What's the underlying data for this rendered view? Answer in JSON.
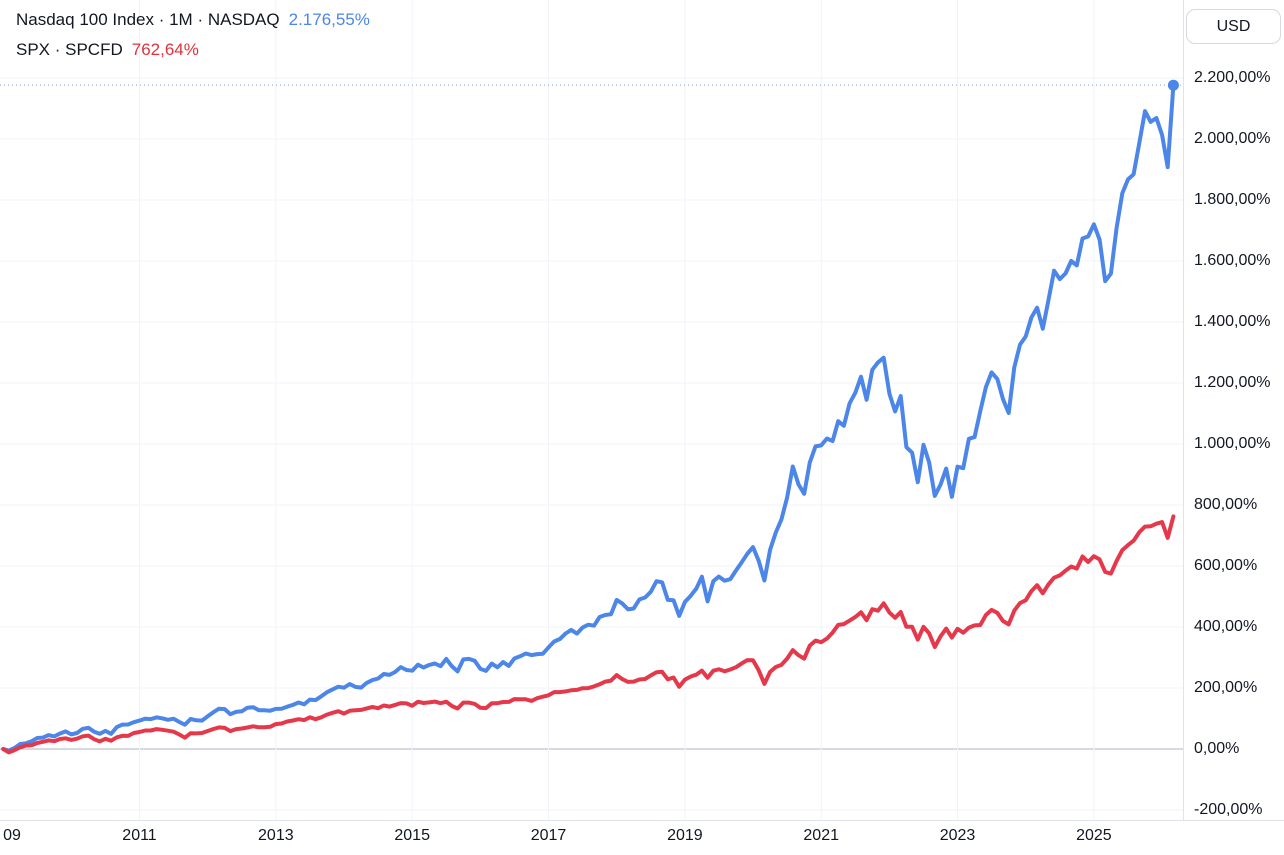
{
  "legend": {
    "line1_title": "Nasdaq 100 Index · 1M · NASDAQ",
    "line1_value": "2.176,55%",
    "line2_title": "SPX · SPCFD",
    "line2_value": "762,64%"
  },
  "currency_button_label": "USD",
  "colors": {
    "ndx_line": "#4c86e8",
    "spx_line": "#e5394b",
    "legend_value_blue": "#4c86e8",
    "legend_value_red": "#e0313e",
    "grid": "#f0f3fa",
    "zero_line": "#b0b3bc",
    "axis_text": "#131722",
    "separator": "#e0e3eb"
  },
  "chart_data": {
    "type": "line",
    "x_axis": {
      "ticks": [
        {
          "label": "09",
          "year": 2009
        },
        {
          "label": "2011",
          "year": 2011
        },
        {
          "label": "2013",
          "year": 2013
        },
        {
          "label": "2015",
          "year": 2015
        },
        {
          "label": "2017",
          "year": 2017
        },
        {
          "label": "2019",
          "year": 2019
        },
        {
          "label": "2021",
          "year": 2021
        },
        {
          "label": "2023",
          "year": 2023
        },
        {
          "label": "2025",
          "year": 2025
        }
      ],
      "xlim": [
        2008.95,
        2026.4
      ],
      "grid": true
    },
    "y_axis": {
      "unit": "percent",
      "tick_values": [
        2200,
        2000,
        1800,
        1600,
        1400,
        1200,
        1000,
        800,
        600,
        400,
        200,
        0,
        -200
      ],
      "tick_labels": [
        "2.200,00%",
        "2.000,00%",
        "1.800,00%",
        "1.600,00%",
        "1.400,00%",
        "1.200,00%",
        "1.000,00%",
        "800,00%",
        "600,00%",
        "400,00%",
        "200,00%",
        "0,00%",
        "-200,00%"
      ],
      "ylim": [
        -320,
        2260
      ],
      "grid": true
    },
    "series": [
      {
        "id": "ndx",
        "name": "Nasdaq 100 Index",
        "color": "#4c86e8",
        "interval": "1M",
        "start_year": 2009,
        "last_value": 2176.55,
        "has_end_dot": true,
        "has_dotted_price_line": true,
        "values": [
          0,
          -5.3,
          3.2,
          16.4,
          18.8,
          25.2,
          36.0,
          37.5,
          45.5,
          41.4,
          50.7,
          57.6,
          47.9,
          52.5,
          66.1,
          69.6,
          56.7,
          49.7,
          59.4,
          49.7,
          71.9,
          80.0,
          80.3,
          88.0,
          93.0,
          99.2,
          98.1,
          103.7,
          100.8,
          95.8,
          99.5,
          88.4,
          79.7,
          98.2,
          94.2,
          93.0,
          107.3,
          120.8,
          132.0,
          130.8,
          114.0,
          121.6,
          123.6,
          135.4,
          137.2,
          127.1,
          127.0,
          125.5,
          131.4,
          132.0,
          138.8,
          144.7,
          152.6,
          146.5,
          161.9,
          160.4,
          172.7,
          186.2,
          195.5,
          204.4,
          201.1,
          213.2,
          203.6,
          201.4,
          216.7,
          225.8,
          231.2,
          245.9,
          243.1,
          252.4,
          268.4,
          259.0,
          256.8,
          276.4,
          267.2,
          275.8,
          280.3,
          271.4,
          295.4,
          271.2,
          254.4,
          293.8,
          295.3,
          289.2,
          262.6,
          256.0,
          280.0,
          267.9,
          284.8,
          272.3,
          296.6,
          304.0,
          313.2,
          308.0,
          311.2,
          312.1,
          333.1,
          352.5,
          360.8,
          378.6,
          390.6,
          378.5,
          398.3,
          407.5,
          404.2,
          432.8,
          439.3,
          442.0,
          489.0,
          476.7,
          457.7,
          460.8,
          490.6,
          496.7,
          515.3,
          550.2,
          546.4,
          489.0,
          488.0,
          436.4,
          482.1,
          501.8,
          525.3,
          564.8,
          483.8,
          550.1,
          565.1,
          551.8,
          556.7,
          585.1,
          612.1,
          640.1,
          662.0,
          617.0,
          552.5,
          653.4,
          709.8,
          752.5,
          824.2,
          926.3,
          867.6,
          836.6,
          939.7,
          992.2,
          995.3,
          1018.0,
          1009.4,
          1074.6,
          1059.8,
          1133.4,
          1167.8,
          1220.5,
          1144.9,
          1243.2,
          1267.4,
          1283.1,
          1165.3,
          1106.5,
          1157.5,
          989.4,
          971.4,
          874.9,
          997.3,
          940.0,
          829.7,
          866.5,
          919.5,
          827.0,
          925.5,
          920.5,
          1017.0,
          1022.5,
          1108.0,
          1186.4,
          1234.8,
          1213.6,
          1147.0,
          1101.7,
          1251.5,
          1325.9,
          1352.3,
          1414.7,
          1447.0,
          1378.0,
          1470.8,
          1568.1,
          1540.8,
          1558.9,
          1600.1,
          1585.6,
          1673.7,
          1680.7,
          1720.2,
          1669.8,
          1533.7,
          1558.6,
          1708.5,
          1822.0,
          1867.6,
          1884.3,
          1986.9,
          2091.4,
          2056.0,
          2069.0,
          2013.0,
          1908.0,
          2176.55
        ]
      },
      {
        "id": "spx",
        "name": "SPX",
        "color": "#e5394b",
        "interval": "1M",
        "start_year": 2009,
        "last_value": 762.64,
        "has_end_dot": false,
        "has_dotted_price_line": false,
        "values": [
          0,
          -11.0,
          -3.5,
          5.7,
          11.4,
          12.2,
          19.6,
          23.6,
          28.1,
          25.5,
          32.7,
          35.1,
          30.0,
          33.8,
          41.7,
          43.8,
          32.0,
          24.8,
          33.5,
          27.2,
          38.3,
          43.4,
          43.0,
          52.4,
          55.9,
          60.8,
          60.6,
          65.2,
          63.0,
          60.0,
          56.6,
          47.6,
          37.1,
          51.9,
          51.0,
          52.4,
          59.0,
          65.5,
          70.7,
          69.3,
          58.8,
          65.1,
          67.2,
          70.4,
          74.5,
          71.2,
          71.6,
          72.8,
          81.6,
          83.5,
          90.2,
          93.6,
          97.6,
          94.7,
          104.0,
          97.8,
          103.8,
          112.8,
          118.8,
          124.0,
          116.0,
          125.2,
          126.9,
          128.2,
          133.1,
          137.6,
          133.9,
          142.7,
          139.0,
          144.6,
          150.5,
          149.5,
          141.8,
          155.0,
          150.7,
          152.8,
          155.4,
          150.1,
          155.0,
          141.1,
          132.7,
          152.0,
          152.1,
          147.8,
          135.2,
          134.2,
          149.7,
          150.3,
          154.2,
          154.4,
          163.5,
          163.1,
          162.8,
          157.7,
          166.5,
          171.4,
          176.2,
          186.5,
          186.4,
          188.9,
          192.3,
          193.7,
          199.4,
          199.6,
          205.3,
          212.1,
          220.9,
          224.1,
          242.2,
          228.9,
          220.1,
          221.0,
          227.9,
          229.5,
          241.3,
          251.7,
          253.2,
          228.6,
          234.5,
          203.8,
          227.7,
          237.5,
          243.5,
          257.1,
          233.6,
          256.6,
          261.2,
          254.7,
          260.8,
          268.2,
          280.7,
          291.6,
          290.9,
          258.0,
          213.3,
          252.9,
          268.9,
          275.8,
          296.5,
          324.2,
          307.6,
          296.3,
          339.0,
          355.3,
          350.2,
          361.9,
          381.6,
          406.8,
          409.6,
          421.0,
          432.8,
          448.2,
          422.2,
          458.2,
          453.6,
          477.7,
          447.4,
          430.2,
          449.1,
          400.8,
          400.8,
          358.8,
          400.6,
          379.4,
          334.5,
          369.3,
          394.6,
          365.4,
          394.1,
          381.2,
          398.1,
          405.3,
          406.7,
          439.4,
          456.2,
          446.4,
          419.7,
          408.4,
          453.7,
          478.2,
          487.4,
          517.7,
          536.9,
          510.4,
          539.8,
          561.8,
          569.3,
          584.6,
          598.4,
          591.5,
          631.2,
          613.0,
          632.2,
          621.8,
          580.2,
          575.0,
          616.6,
          652.1,
          668.5,
          683.0,
          710.7,
          729.1,
          730.2,
          738.8,
          744.0,
          692.0,
          762.64
        ]
      }
    ]
  }
}
